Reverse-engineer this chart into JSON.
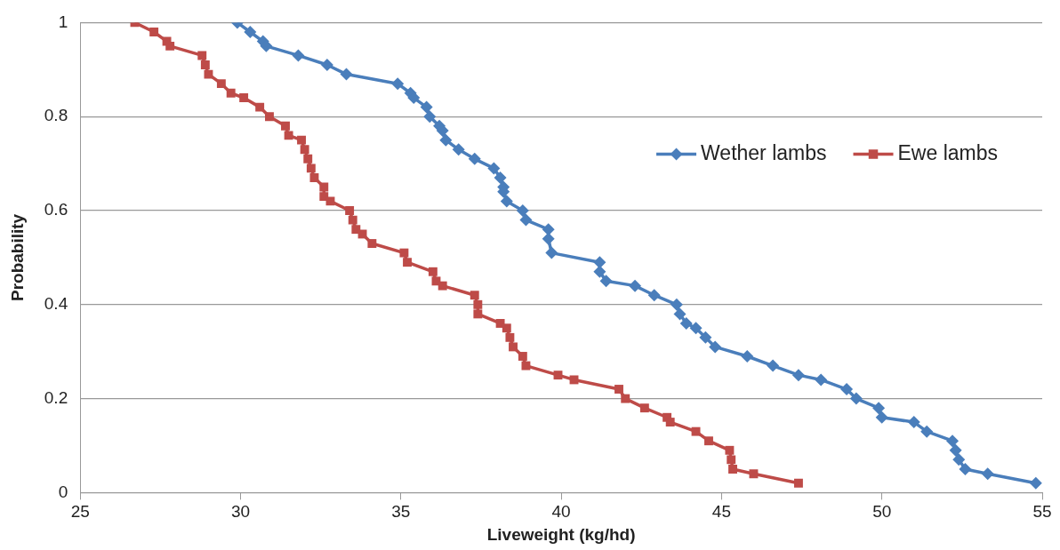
{
  "chart_data": {
    "type": "line",
    "xlabel": "Liveweight (kg/hd)",
    "ylabel": "Probability",
    "xlim": [
      25,
      55
    ],
    "xticks": [
      25,
      30,
      35,
      40,
      45,
      50,
      55
    ],
    "ylim": [
      0,
      1
    ],
    "yticks": [
      0,
      0.2,
      0.4,
      0.6,
      0.8,
      1
    ],
    "grid": "y",
    "legend": "top right",
    "line_style": "solid",
    "series": [
      {
        "name": "Wether lambs",
        "color": "#4a7ebb",
        "marker": "diamond",
        "x": [
          29.9,
          30.3,
          30.7,
          30.8,
          31.8,
          32.7,
          33.3,
          34.9,
          35.3,
          35.4,
          35.8,
          35.9,
          36.2,
          36.3,
          36.4,
          36.8,
          37.3,
          37.9,
          38.1,
          38.2,
          38.2,
          38.3,
          38.8,
          38.9,
          39.6,
          39.6,
          39.7,
          41.2,
          41.2,
          41.4,
          42.3,
          42.9,
          43.6,
          43.7,
          43.9,
          44.2,
          44.5,
          44.8,
          45.8,
          46.6,
          47.4,
          48.1,
          48.9,
          49.2,
          49.9,
          50.0,
          51.0,
          51.4,
          52.2,
          52.3,
          52.4,
          52.6,
          53.3,
          54.8
        ],
        "values": [
          1.0,
          0.98,
          0.96,
          0.95,
          0.93,
          0.91,
          0.89,
          0.87,
          0.85,
          0.84,
          0.82,
          0.8,
          0.78,
          0.77,
          0.75,
          0.73,
          0.71,
          0.69,
          0.67,
          0.65,
          0.64,
          0.62,
          0.6,
          0.58,
          0.56,
          0.54,
          0.51,
          0.49,
          0.47,
          0.45,
          0.44,
          0.42,
          0.4,
          0.38,
          0.36,
          0.35,
          0.33,
          0.31,
          0.29,
          0.27,
          0.25,
          0.24,
          0.22,
          0.2,
          0.18,
          0.16,
          0.15,
          0.13,
          0.11,
          0.09,
          0.07,
          0.05,
          0.04,
          0.02
        ]
      },
      {
        "name": "Ewe lambs",
        "color": "#be4b48",
        "marker": "square",
        "x": [
          26.7,
          27.3,
          27.7,
          27.8,
          28.8,
          28.9,
          29.0,
          29.4,
          29.7,
          30.1,
          30.6,
          30.9,
          31.4,
          31.5,
          31.9,
          32.0,
          32.1,
          32.2,
          32.3,
          32.6,
          32.6,
          32.8,
          33.4,
          33.5,
          33.6,
          33.8,
          34.1,
          35.1,
          35.2,
          36.0,
          36.1,
          36.3,
          37.3,
          37.4,
          37.4,
          38.1,
          38.3,
          38.4,
          38.5,
          38.8,
          38.9,
          39.9,
          40.4,
          41.8,
          42.0,
          42.6,
          43.3,
          43.4,
          44.2,
          44.6,
          45.25,
          45.3,
          45.35,
          46.0,
          47.4
        ],
        "values": [
          1.0,
          0.98,
          0.96,
          0.95,
          0.93,
          0.91,
          0.89,
          0.87,
          0.85,
          0.84,
          0.82,
          0.8,
          0.78,
          0.76,
          0.75,
          0.73,
          0.71,
          0.69,
          0.67,
          0.65,
          0.63,
          0.62,
          0.6,
          0.58,
          0.56,
          0.55,
          0.53,
          0.51,
          0.49,
          0.47,
          0.45,
          0.44,
          0.42,
          0.4,
          0.38,
          0.36,
          0.35,
          0.33,
          0.31,
          0.29,
          0.27,
          0.25,
          0.24,
          0.22,
          0.2,
          0.18,
          0.16,
          0.15,
          0.13,
          0.11,
          0.09,
          0.07,
          0.05,
          0.04,
          0.02
        ]
      }
    ]
  }
}
